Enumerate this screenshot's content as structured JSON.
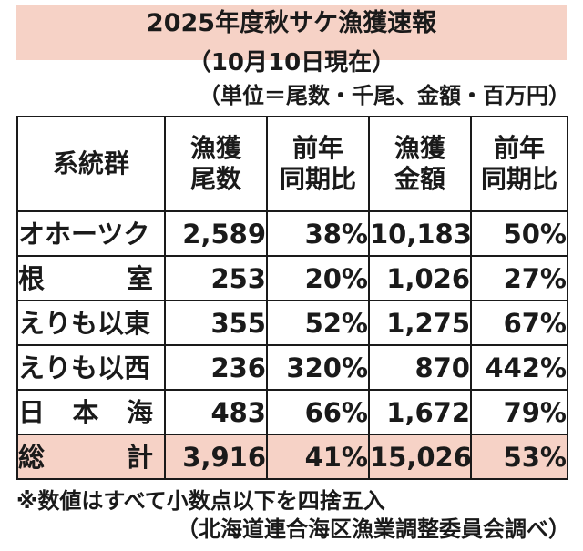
{
  "title": "2025年度秋サケ漁獲速報",
  "subtitle": "（10月10日現在）",
  "unit_note": "（単位＝尾数・千尾、金額・百万円）",
  "table": {
    "headers": [
      [
        "系統群"
      ],
      [
        "漁獲",
        "尾数"
      ],
      [
        "前年",
        "同期比"
      ],
      [
        "漁獲",
        "金額"
      ],
      [
        "前年",
        "同期比"
      ]
    ],
    "rows": [
      {
        "name": "オホーツク",
        "name_spread": false,
        "catch_count": "2,589",
        "count_yoy": "38%",
        "catch_value": "10,183",
        "value_yoy": "50%"
      },
      {
        "name": "根室",
        "name_spread": true,
        "name_chars": [
          "根",
          "室"
        ],
        "catch_count": "253",
        "count_yoy": "20%",
        "catch_value": "1,026",
        "value_yoy": "27%"
      },
      {
        "name": "えりも以東",
        "name_spread": false,
        "catch_count": "355",
        "count_yoy": "52%",
        "catch_value": "1,275",
        "value_yoy": "67%"
      },
      {
        "name": "えりも以西",
        "name_spread": false,
        "catch_count": "236",
        "count_yoy": "320%",
        "catch_value": "870",
        "value_yoy": "442%"
      },
      {
        "name": "日本海",
        "name_spread": true,
        "name_chars": [
          "日",
          "本",
          "海"
        ],
        "catch_count": "483",
        "count_yoy": "66%",
        "catch_value": "1,672",
        "value_yoy": "79%"
      }
    ],
    "total": {
      "name": "総計",
      "name_chars": [
        "総",
        "計"
      ],
      "catch_count": "3,916",
      "count_yoy": "41%",
      "catch_value": "15,026",
      "value_yoy": "53%"
    }
  },
  "footnote": "※数値はすべて小数点以下を四捨五入",
  "source": "（北海道連合海区漁業調整委員会調べ）",
  "colors": {
    "highlight": "#f6d2c6",
    "border": "#1a1a1a"
  }
}
